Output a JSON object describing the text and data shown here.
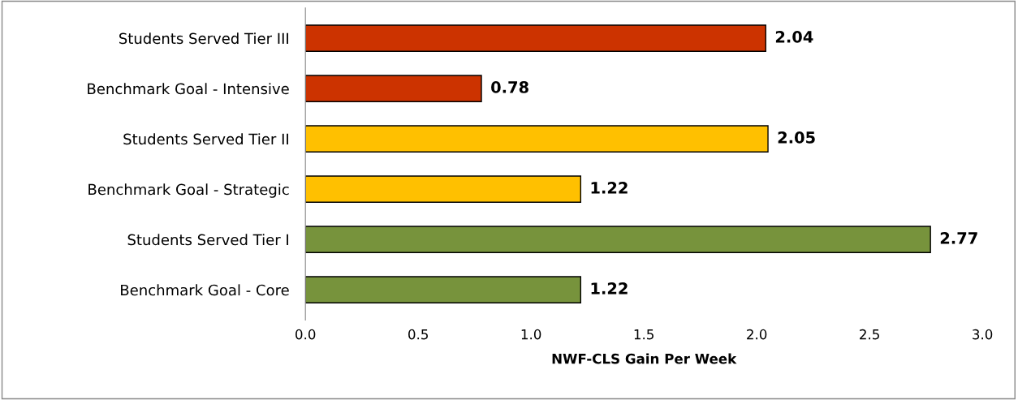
{
  "chart_data": {
    "type": "bar",
    "orientation": "horizontal",
    "xlabel": "NWF-CLS Gain Per Week",
    "categories": [
      "Students Served Tier III",
      "Benchmark Goal - Intensive",
      "Students Served Tier II",
      "Benchmark Goal - Strategic",
      "Students Served Tier I",
      "Benchmark Goal - Core"
    ],
    "values": [
      2.04,
      0.78,
      2.05,
      1.22,
      2.77,
      1.22
    ],
    "colors": [
      "#cc3300",
      "#cc3300",
      "#ffc000",
      "#ffc000",
      "#77933c",
      "#77933c"
    ],
    "xlim": [
      0,
      3
    ],
    "xticks": [
      {
        "value": 0,
        "label": "0.0"
      },
      {
        "value": 0.5,
        "label": "0.5"
      },
      {
        "value": 1,
        "label": "1.0"
      },
      {
        "value": 1.5,
        "label": "1.5"
      },
      {
        "value": 2,
        "label": "2.0"
      },
      {
        "value": 2.5,
        "label": "2.5"
      },
      {
        "value": 3,
        "label": "3.0"
      }
    ],
    "data_labels": true,
    "grid": false
  }
}
